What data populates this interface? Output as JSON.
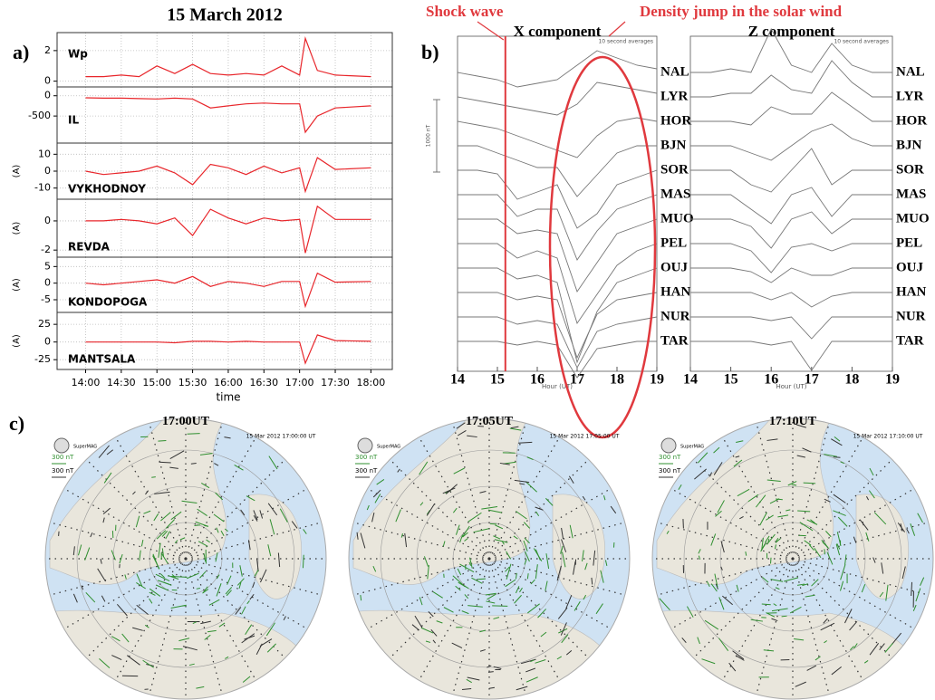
{
  "panel_labels": [
    "a)",
    "b)",
    "c)"
  ],
  "chart_data": [
    {
      "type": "line-stack",
      "title": "15 March 2012",
      "xlabel": "time",
      "xlim": [
        13.6,
        18.3
      ],
      "xticks": [
        {
          "value": 14,
          "label": "14:00"
        },
        {
          "value": 14.5,
          "label": "14:30"
        },
        {
          "value": 15,
          "label": "15:00"
        },
        {
          "value": 15.5,
          "label": "15:30"
        },
        {
          "value": 16,
          "label": "16:00"
        },
        {
          "value": 16.5,
          "label": "16:30"
        },
        {
          "value": 17,
          "label": "17:00"
        },
        {
          "value": 17.5,
          "label": "17:30"
        },
        {
          "value": 18,
          "label": "18:00"
        }
      ],
      "grid": true,
      "x": [
        14,
        14.25,
        14.5,
        14.75,
        15,
        15.25,
        15.5,
        15.75,
        16,
        16.25,
        16.5,
        16.75,
        17,
        17.08,
        17.25,
        17.5,
        18
      ],
      "panels": [
        {
          "name": "Wp",
          "color": "#e8262b",
          "ylim": [
            -0.2,
            3
          ],
          "yticks": [
            0,
            2
          ],
          "values": [
            0.3,
            0.3,
            0.4,
            0.3,
            1.0,
            0.5,
            1.1,
            0.5,
            0.4,
            0.5,
            0.4,
            1.0,
            0.4,
            2.8,
            0.7,
            0.4,
            0.3
          ]
        },
        {
          "name": "IL",
          "color": "#e8262b",
          "ylim": [
            -1100,
            150
          ],
          "yticks": [
            0,
            -500
          ],
          "values": [
            -50,
            -60,
            -60,
            -70,
            -80,
            -60,
            -80,
            -300,
            -250,
            -200,
            -180,
            -200,
            -200,
            -900,
            -500,
            -300,
            -250
          ]
        },
        {
          "name": "VYKHODNOY",
          "ylabel": "(A)",
          "color": "#e8262b",
          "ylim": [
            -15,
            15
          ],
          "yticks": [
            10,
            0,
            -10
          ],
          "values": [
            0,
            -2,
            -1,
            0,
            3,
            -1,
            -8,
            4,
            2,
            -2,
            3,
            -1,
            2,
            -12,
            8,
            1,
            2
          ]
        },
        {
          "name": "REVDA",
          "ylabel": "(A)",
          "color": "#e8262b",
          "ylim": [
            -2.3,
            1.3
          ],
          "yticks": [
            0,
            -2
          ],
          "values": [
            0,
            0,
            0.1,
            0,
            -0.2,
            0.2,
            -1,
            0.8,
            0.2,
            -0.2,
            0.2,
            0,
            0.1,
            -2.2,
            1,
            0.1,
            0.1
          ]
        },
        {
          "name": "KONDOPOGA",
          "ylabel": "(A)",
          "color": "#e8262b",
          "ylim": [
            -8,
            7
          ],
          "yticks": [
            5,
            0,
            -5
          ],
          "values": [
            0,
            -0.5,
            0,
            0.5,
            1,
            0,
            2,
            -1,
            0.5,
            0,
            -1,
            0.5,
            0.5,
            -7,
            3,
            0.3,
            0.5
          ]
        },
        {
          "name": "MANTSALA",
          "ylabel": "(A)",
          "color": "#e8262b",
          "ylim": [
            -35,
            38
          ],
          "yticks": [
            25,
            0,
            -25
          ],
          "values": [
            0,
            0,
            0,
            0,
            0,
            -1,
            1,
            1,
            0,
            1,
            0,
            0,
            0,
            -30,
            10,
            2,
            1
          ]
        }
      ]
    },
    {
      "type": "magnetogram",
      "xlabel": "Hour (UT)",
      "note": "10 second averages",
      "xlim": [
        14,
        19
      ],
      "xticks": [
        14,
        15,
        16,
        17,
        18,
        19
      ],
      "scale_bar": {
        "label": "1000 nT",
        "value": 1000
      },
      "shock": {
        "label": "Shock wave",
        "x": 15.2,
        "color": "#e0393e"
      },
      "density_jump": {
        "label": "Density jump in the solar wind",
        "color": "#e0393e"
      },
      "x": [
        14,
        14.5,
        15,
        15.5,
        16,
        16.5,
        17,
        17.5,
        18,
        18.5,
        19
      ],
      "panels": [
        {
          "title": "X component",
          "series": [
            {
              "name": "NAL",
              "color": "#777",
              "values": [
                0,
                -50,
                -100,
                -200,
                -150,
                -100,
                100,
                300,
                200,
                100,
                50
              ]
            },
            {
              "name": "LYR",
              "color": "#777",
              "values": [
                0,
                -50,
                -100,
                -150,
                -200,
                -250,
                -100,
                200,
                150,
                100,
                50
              ]
            },
            {
              "name": "HOR",
              "color": "#777",
              "values": [
                0,
                -50,
                -100,
                -200,
                -300,
                -400,
                -500,
                -200,
                0,
                50,
                0
              ]
            },
            {
              "name": "BJN",
              "color": "#777",
              "values": [
                0,
                0,
                -100,
                -200,
                -300,
                -300,
                -700,
                -400,
                -100,
                0,
                0
              ]
            },
            {
              "name": "SOR",
              "color": "#777",
              "values": [
                0,
                0,
                -50,
                -400,
                -300,
                -200,
                -800,
                -600,
                -200,
                -100,
                0
              ]
            },
            {
              "name": "MAS",
              "color": "#777",
              "values": [
                0,
                0,
                0,
                -300,
                -200,
                -200,
                -900,
                -500,
                -200,
                -100,
                0
              ]
            },
            {
              "name": "MUO",
              "color": "#777",
              "values": [
                0,
                0,
                0,
                -200,
                -150,
                -200,
                -1000,
                -600,
                -200,
                -100,
                0
              ]
            },
            {
              "name": "PEL",
              "color": "#777",
              "values": [
                0,
                0,
                0,
                -200,
                -100,
                -200,
                -1100,
                -700,
                -300,
                -100,
                0
              ]
            },
            {
              "name": "OUJ",
              "color": "#777",
              "values": [
                0,
                0,
                0,
                -150,
                -100,
                -200,
                -1300,
                -600,
                -200,
                -100,
                0
              ]
            },
            {
              "name": "HAN",
              "color": "#777",
              "values": [
                0,
                0,
                0,
                -100,
                -50,
                -100,
                -900,
                -300,
                -100,
                -50,
                0
              ]
            },
            {
              "name": "NUR",
              "color": "#777",
              "values": [
                0,
                0,
                0,
                -100,
                -50,
                -100,
                -700,
                -200,
                -100,
                -50,
                0
              ]
            },
            {
              "name": "TAR",
              "color": "#777",
              "values": [
                0,
                0,
                0,
                -50,
                0,
                -50,
                -500,
                -100,
                -50,
                0,
                0
              ]
            }
          ]
        },
        {
          "title": "Z component",
          "series": [
            {
              "name": "NAL",
              "color": "#777",
              "values": [
                0,
                0,
                50,
                0,
                600,
                100,
                0,
                400,
                100,
                0,
                0
              ]
            },
            {
              "name": "LYR",
              "color": "#777",
              "values": [
                0,
                0,
                50,
                50,
                300,
                100,
                50,
                500,
                200,
                0,
                0
              ]
            },
            {
              "name": "HOR",
              "color": "#777",
              "values": [
                0,
                0,
                0,
                -50,
                200,
                100,
                100,
                400,
                200,
                0,
                0
              ]
            },
            {
              "name": "BJN",
              "color": "#777",
              "values": [
                0,
                0,
                0,
                -100,
                -200,
                0,
                200,
                300,
                100,
                0,
                0
              ]
            },
            {
              "name": "SOR",
              "color": "#777",
              "values": [
                0,
                0,
                0,
                -200,
                -300,
                0,
                300,
                -200,
                0,
                0,
                0
              ]
            },
            {
              "name": "MAS",
              "color": "#777",
              "values": [
                0,
                0,
                0,
                -200,
                -400,
                0,
                100,
                -300,
                0,
                0,
                0
              ]
            },
            {
              "name": "MUO",
              "color": "#777",
              "values": [
                0,
                0,
                0,
                -100,
                -400,
                0,
                100,
                -200,
                0,
                0,
                0
              ]
            },
            {
              "name": "PEL",
              "color": "#777",
              "values": [
                0,
                0,
                0,
                -100,
                -400,
                -50,
                0,
                -100,
                0,
                0,
                0
              ]
            },
            {
              "name": "OUJ",
              "color": "#777",
              "values": [
                0,
                0,
                0,
                -50,
                -200,
                0,
                -100,
                -100,
                0,
                0,
                0
              ]
            },
            {
              "name": "HAN",
              "color": "#777",
              "values": [
                0,
                0,
                0,
                0,
                -100,
                0,
                -200,
                -50,
                0,
                0,
                0
              ]
            },
            {
              "name": "NUR",
              "color": "#777",
              "values": [
                0,
                0,
                0,
                0,
                -50,
                0,
                -300,
                0,
                0,
                0,
                0
              ]
            },
            {
              "name": "TAR",
              "color": "#777",
              "values": [
                0,
                0,
                0,
                0,
                -50,
                0,
                -400,
                0,
                0,
                0,
                0
              ]
            }
          ]
        }
      ]
    }
  ],
  "maps": [
    {
      "title": "17:00UT",
      "timestamp": "15 Mar 2012 17:00:00 UT",
      "logo": "SuperMAG",
      "scale_labels": [
        "300 nT",
        "300 nT"
      ]
    },
    {
      "title": "17:05UT",
      "timestamp": "15 Mar 2012 17:05:00 UT",
      "logo": "SuperMAG",
      "scale_labels": [
        "300 nT",
        "300 nT"
      ]
    },
    {
      "title": "17:10UT",
      "timestamp": "15 Mar 2012 17:10:00 UT",
      "logo": "SuperMAG",
      "scale_labels": [
        "300 nT",
        "300 nT"
      ]
    }
  ]
}
